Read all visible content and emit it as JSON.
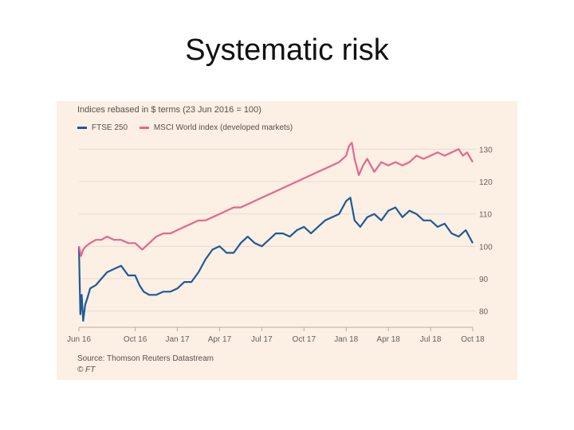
{
  "slide": {
    "title": "Systematic risk"
  },
  "colors": {
    "ftse": "#1f5a96",
    "msci": "#e0688f",
    "background": "#fcefe3",
    "grid": "#e7dcd1"
  },
  "chart_data": {
    "type": "line",
    "title": "Indices rebased in $ terms (23 Jun 2016 = 100)",
    "xlabel": "",
    "ylabel": "",
    "ylim": [
      75,
      135
    ],
    "yticks": [
      80,
      90,
      100,
      110,
      120,
      130
    ],
    "ytick_labels": [
      "80",
      "90",
      "100",
      "110",
      "120",
      "130"
    ],
    "xlim": [
      0,
      28
    ],
    "xticks": [
      0,
      4,
      7,
      10,
      13,
      16,
      19,
      22,
      25,
      28
    ],
    "xtick_labels": [
      "Jun 16",
      "Oct 16",
      "Jan 17",
      "Apr 17",
      "Jul 17",
      "Oct 17",
      "Jan 18",
      "Apr 18",
      "Jul 18",
      "Oct 18"
    ],
    "grid": true,
    "legend": "top-left",
    "source": "Source: Thomson Reuters Datastream",
    "credit": "© FT",
    "series": [
      {
        "name": "FTSE 250",
        "color": "#1f5a96",
        "x": [
          0,
          0.1,
          0.2,
          0.3,
          0.45,
          0.6,
          0.8,
          1.2,
          1.6,
          2.0,
          2.5,
          3.0,
          3.5,
          4.0,
          4.3,
          4.6,
          5.0,
          5.5,
          6.0,
          6.5,
          7.0,
          7.5,
          8.0,
          8.5,
          9.0,
          9.5,
          10.0,
          10.5,
          11.0,
          11.5,
          12.0,
          12.5,
          13.0,
          13.5,
          14.0,
          14.5,
          15.0,
          15.5,
          16.0,
          16.5,
          17.0,
          17.5,
          18.0,
          18.5,
          19.0,
          19.3,
          19.6,
          20.0,
          20.5,
          21.0,
          21.5,
          22.0,
          22.5,
          23.0,
          23.5,
          24.0,
          24.5,
          25.0,
          25.5,
          26.0,
          26.5,
          27.0,
          27.5,
          28.0
        ],
        "values": [
          100,
          79,
          85,
          77,
          82,
          84,
          87,
          88,
          90,
          92,
          93,
          94,
          91,
          91,
          88,
          86,
          85,
          85,
          86,
          86,
          87,
          89,
          89,
          92,
          96,
          99,
          100,
          98,
          98,
          101,
          103,
          101,
          100,
          102,
          104,
          104,
          103,
          105,
          106,
          104,
          106,
          108,
          109,
          110,
          114,
          115,
          108,
          106,
          109,
          110,
          108,
          111,
          112,
          109,
          111,
          110,
          108,
          108,
          106,
          107,
          104,
          103,
          105,
          101
        ]
      },
      {
        "name": "MSCI World index (developed markets)",
        "color": "#e0688f",
        "x": [
          0,
          0.15,
          0.3,
          0.5,
          0.8,
          1.2,
          1.6,
          2.0,
          2.5,
          3.0,
          3.5,
          4.0,
          4.5,
          5.0,
          5.5,
          6.0,
          6.5,
          7.0,
          7.5,
          8.0,
          8.5,
          9.0,
          9.5,
          10.0,
          10.5,
          11.0,
          11.5,
          12.0,
          12.5,
          13.0,
          13.5,
          14.0,
          14.5,
          15.0,
          15.5,
          16.0,
          16.5,
          17.0,
          17.5,
          18.0,
          18.5,
          19.0,
          19.2,
          19.4,
          19.6,
          19.9,
          20.2,
          20.5,
          21.0,
          21.5,
          22.0,
          22.5,
          23.0,
          23.5,
          24.0,
          24.5,
          25.0,
          25.5,
          26.0,
          26.5,
          27.0,
          27.3,
          27.6,
          28.0
        ],
        "values": [
          100,
          97,
          99,
          100,
          101,
          102,
          102,
          103,
          102,
          102,
          101,
          101,
          99,
          101,
          103,
          104,
          104,
          105,
          106,
          107,
          108,
          108,
          109,
          110,
          111,
          112,
          112,
          113,
          114,
          115,
          116,
          117,
          118,
          119,
          120,
          121,
          122,
          123,
          124,
          125,
          126,
          128,
          131,
          132,
          127,
          122,
          125,
          127,
          123,
          126,
          125,
          126,
          125,
          126,
          128,
          127,
          128,
          129,
          128,
          129,
          130,
          128,
          129,
          126
        ]
      }
    ]
  }
}
